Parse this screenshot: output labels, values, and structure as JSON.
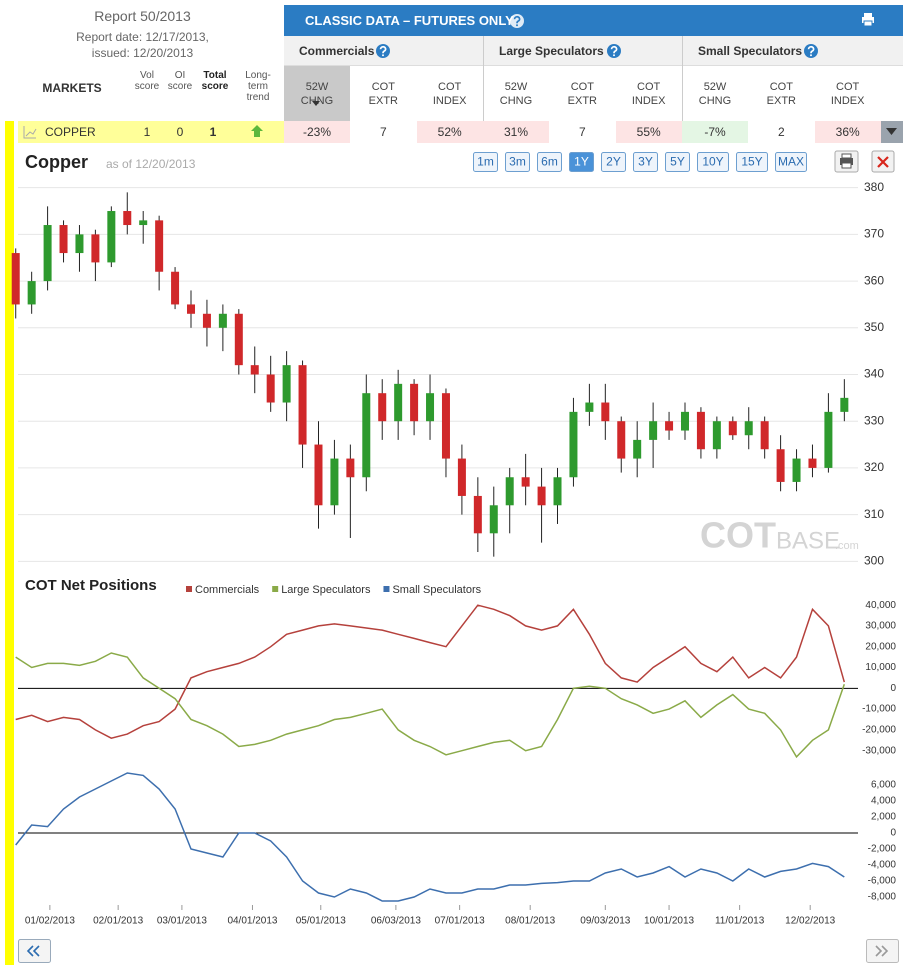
{
  "report": {
    "title": "Report 50/2013",
    "date": "Report date: 12/17/2013,",
    "issued": "issued: 12/20/2013"
  },
  "table": {
    "banner": "CLASSIC DATA – FUTURES ONLY",
    "markets_header": "MARKETS",
    "score_headers": [
      "Vol score",
      "OI score",
      "Total score",
      "Long-term trend"
    ],
    "groups": [
      "Commercials",
      "Large Speculators",
      "Small Speculators"
    ],
    "columns": [
      "52W CHNG",
      "COT EXTR",
      "COT INDEX"
    ],
    "row": {
      "market": "COPPER",
      "scores": [
        "1",
        "0",
        "1"
      ],
      "values": [
        "-23%",
        "7",
        "52%",
        "31%",
        "7",
        "55%",
        "-7%",
        "2",
        "36%"
      ],
      "value_colors": [
        "#fde4e4",
        "#ffffff",
        "#fde4e4",
        "#fde4e4",
        "#ffffff",
        "#fde4e4",
        "#e4f6e4",
        "#ffffff",
        "#fde4e4"
      ]
    }
  },
  "chart_data": [
    {
      "type": "candlestick",
      "title": "Copper",
      "subtitle": "as of 12/20/2013",
      "range_buttons": [
        "1m",
        "3m",
        "6m",
        "1Y",
        "2Y",
        "3Y",
        "5Y",
        "10Y",
        "15Y",
        "MAX"
      ],
      "selected_range": "1Y",
      "watermark": [
        "COT",
        "BASE",
        ".com"
      ],
      "up_color": "#2e9a2e",
      "down_color": "#d0282a",
      "grid": true,
      "xlim": [
        "12/19/2012",
        "12/23/2013"
      ],
      "ylim": [
        299,
        381
      ],
      "yticks": [
        300,
        310,
        320,
        330,
        340,
        350,
        360,
        370,
        380
      ],
      "x": [
        "12/18/2012",
        "12/25/2012",
        "01/01/2013",
        "01/08/2013",
        "01/15/2013",
        "01/22/2013",
        "01/29/2013",
        "02/05/2013",
        "02/12/2013",
        "02/19/2013",
        "02/26/2013",
        "03/05/2013",
        "03/12/2013",
        "03/19/2013",
        "03/26/2013",
        "04/02/2013",
        "04/09/2013",
        "04/16/2013",
        "04/23/2013",
        "04/30/2013",
        "05/07/2013",
        "05/14/2013",
        "05/21/2013",
        "05/28/2013",
        "06/04/2013",
        "06/11/2013",
        "06/18/2013",
        "06/25/2013",
        "07/02/2013",
        "07/09/2013",
        "07/16/2013",
        "07/23/2013",
        "07/30/2013",
        "08/06/2013",
        "08/13/2013",
        "08/20/2013",
        "08/27/2013",
        "09/03/2013",
        "09/10/2013",
        "09/17/2013",
        "09/24/2013",
        "10/01/2013",
        "10/08/2013",
        "10/15/2013",
        "10/22/2013",
        "10/29/2013",
        "11/05/2013",
        "11/12/2013",
        "11/19/2013",
        "11/26/2013",
        "12/03/2013",
        "12/10/2013",
        "12/17/2013"
      ],
      "open": [
        366,
        355,
        360,
        372,
        366,
        370,
        364,
        375,
        372,
        373,
        362,
        355,
        353,
        350,
        353,
        342,
        340,
        334,
        342,
        325,
        312,
        322,
        318,
        336,
        330,
        338,
        330,
        336,
        322,
        314,
        306,
        312,
        318,
        316,
        312,
        318,
        332,
        334,
        330,
        322,
        326,
        330,
        328,
        332,
        324,
        330,
        327,
        330,
        324,
        317,
        322,
        320,
        332
      ],
      "high": [
        367,
        362,
        376,
        373,
        372,
        371,
        376,
        379,
        375,
        374,
        363,
        358,
        356,
        355,
        354,
        346,
        344,
        345,
        343,
        330,
        326,
        325,
        340,
        339,
        341,
        339,
        340,
        337,
        325,
        318,
        316,
        320,
        323,
        320,
        320,
        335,
        338,
        338,
        331,
        330,
        334,
        332,
        334,
        333,
        331,
        331,
        333,
        331,
        327,
        324,
        325,
        336,
        339
      ],
      "low": [
        352,
        353,
        358,
        364,
        362,
        360,
        363,
        370,
        368,
        358,
        354,
        350,
        346,
        345,
        340,
        336,
        332,
        330,
        320,
        307,
        310,
        305,
        315,
        326,
        326,
        327,
        326,
        318,
        310,
        302,
        301,
        306,
        312,
        304,
        308,
        316,
        329,
        326,
        319,
        318,
        320,
        326,
        326,
        322,
        322,
        326,
        324,
        322,
        315,
        315,
        318,
        319,
        330
      ],
      "close": [
        355,
        360,
        372,
        366,
        370,
        364,
        375,
        372,
        373,
        362,
        355,
        353,
        350,
        353,
        342,
        340,
        334,
        342,
        325,
        312,
        322,
        318,
        336,
        330,
        338,
        330,
        336,
        322,
        314,
        306,
        312,
        318,
        316,
        312,
        318,
        332,
        334,
        330,
        322,
        326,
        330,
        328,
        332,
        324,
        330,
        327,
        330,
        324,
        317,
        322,
        320,
        332,
        335
      ]
    },
    {
      "type": "line",
      "title": "COT Net Positions",
      "xlim": [
        "12/19/2012",
        "12/23/2013"
      ],
      "xticks": [
        "01/02/2013",
        "02/01/2013",
        "03/01/2013",
        "04/01/2013",
        "05/01/2013",
        "06/03/2013",
        "07/01/2013",
        "08/01/2013",
        "09/03/2013",
        "10/01/2013",
        "11/01/2013",
        "12/02/2013"
      ],
      "ylim": [
        -34000,
        42000
      ],
      "yticks": [
        {
          "value": 40000,
          "label": "40,000"
        },
        {
          "value": 30000,
          "label": "30,000"
        },
        {
          "value": 20000,
          "label": "20,000"
        },
        {
          "value": 10000,
          "label": "10,000"
        },
        0,
        {
          "value": -10000,
          "label": "-10,000"
        },
        {
          "value": -20000,
          "label": "-20,000"
        },
        {
          "value": -30000,
          "label": "-30,000"
        }
      ],
      "y2lim": [
        -9000,
        8000
      ],
      "y2ticks": [
        {
          "value": 6000,
          "label": "6,000"
        },
        {
          "value": 4000,
          "label": "4,000"
        },
        {
          "value": 2000,
          "label": "2,000"
        },
        0,
        {
          "value": -2000,
          "label": "-2,000"
        },
        {
          "value": -4000,
          "label": "-4,000"
        },
        {
          "value": -6000,
          "label": "-6,000"
        },
        {
          "value": -8000,
          "label": "-8,000"
        }
      ],
      "x": [
        "12/18/2012",
        "12/25/2012",
        "01/01/2013",
        "01/08/2013",
        "01/15/2013",
        "01/22/2013",
        "01/29/2013",
        "02/05/2013",
        "02/12/2013",
        "02/19/2013",
        "02/26/2013",
        "03/05/2013",
        "03/12/2013",
        "03/19/2013",
        "03/26/2013",
        "04/02/2013",
        "04/09/2013",
        "04/16/2013",
        "04/23/2013",
        "04/30/2013",
        "05/07/2013",
        "05/14/2013",
        "05/21/2013",
        "05/28/2013",
        "06/04/2013",
        "06/11/2013",
        "06/18/2013",
        "06/25/2013",
        "07/02/2013",
        "07/09/2013",
        "07/16/2013",
        "07/23/2013",
        "07/30/2013",
        "08/06/2013",
        "08/13/2013",
        "08/20/2013",
        "08/27/2013",
        "09/03/2013",
        "09/10/2013",
        "09/17/2013",
        "09/24/2013",
        "10/01/2013",
        "10/08/2013",
        "10/15/2013",
        "10/22/2013",
        "10/29/2013",
        "11/05/2013",
        "11/12/2013",
        "11/19/2013",
        "11/26/2013",
        "12/03/2013",
        "12/10/2013",
        "12/17/2013"
      ],
      "series": [
        {
          "name": "Commercials",
          "color": "#b5413c",
          "values": [
            -15000,
            -13000,
            -16000,
            -14000,
            -15000,
            -20000,
            -24000,
            -22000,
            -18000,
            -16000,
            -10000,
            5000,
            8000,
            10000,
            12000,
            15000,
            20000,
            26000,
            28000,
            30000,
            31000,
            30000,
            29000,
            28000,
            26000,
            24000,
            22000,
            20000,
            30000,
            40000,
            38000,
            35000,
            30000,
            28000,
            30000,
            38000,
            26000,
            12000,
            5000,
            3000,
            10000,
            15000,
            20000,
            12000,
            8000,
            15000,
            5000,
            10000,
            5000,
            15000,
            38000,
            30000,
            3000
          ]
        },
        {
          "name": "Large Speculators",
          "color": "#8aaa48",
          "values": [
            15000,
            10000,
            12000,
            12000,
            11000,
            13000,
            17000,
            15000,
            5000,
            0,
            -5000,
            -15000,
            -18000,
            -22000,
            -28000,
            -27000,
            -25000,
            -22000,
            -20000,
            -18000,
            -15000,
            -14000,
            -12000,
            -10000,
            -20000,
            -25000,
            -28000,
            -32000,
            -30000,
            -28000,
            -26000,
            -25000,
            -30000,
            -28000,
            -15000,
            0,
            1000,
            0,
            -5000,
            -8000,
            -12000,
            -10000,
            -6000,
            -14000,
            -8000,
            -3000,
            -10000,
            -12000,
            -20000,
            -33000,
            -25000,
            -20000,
            2000
          ]
        },
        {
          "name": "Small Speculators",
          "color": "#3d6fae",
          "axis": "y2",
          "values": [
            -1500,
            1000,
            800,
            3000,
            4500,
            5500,
            6500,
            7500,
            7200,
            5500,
            3000,
            -2000,
            -2500,
            -3000,
            0,
            0,
            -1000,
            -3000,
            -6000,
            -7500,
            -8000,
            -7000,
            -7500,
            -8500,
            -8500,
            -8000,
            -7000,
            -7500,
            -7500,
            -7000,
            -7000,
            -6500,
            -6500,
            -6300,
            -6200,
            -6000,
            -6000,
            -5000,
            -4500,
            -5500,
            -5000,
            -4200,
            -5500,
            -4500,
            -5000,
            -6000,
            -4500,
            -5500,
            -4800,
            -4500,
            -3800,
            -4200,
            -5500
          ]
        }
      ]
    }
  ]
}
